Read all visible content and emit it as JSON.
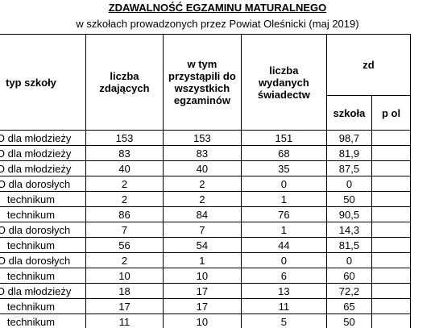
{
  "header": {
    "title": "ZDAWALNOŚĆ EGZAMINU MATURALNEGO",
    "subtitle": "w szkołach prowadzonych przez Powiat Oleśnicki (maj 2019)"
  },
  "table": {
    "columns": [
      "typ szkoły",
      "liczba zdających",
      "w tym przystąpili do wszystkich egzaminów",
      "liczba wydanych świadectw",
      "zd"
    ],
    "subcolumns": [
      "szkoła",
      "p ol"
    ],
    "rows": [
      [
        "LO dla młodzieży",
        "153",
        "153",
        "151",
        "98,7"
      ],
      [
        "LO dla młodzieży",
        "83",
        "83",
        "68",
        "81,9"
      ],
      [
        "LO dla młodzieży",
        "40",
        "40",
        "35",
        "87,5"
      ],
      [
        "LO dla dorosłych",
        "2",
        "2",
        "0",
        "0"
      ],
      [
        "technikum",
        "2",
        "2",
        "1",
        "50"
      ],
      [
        "technikum",
        "86",
        "84",
        "76",
        "90,5"
      ],
      [
        "LO dla dorosłych",
        "7",
        "7",
        "1",
        "14,3"
      ],
      [
        "technikum",
        "56",
        "54",
        "44",
        "81,5"
      ],
      [
        "LO dla dorosłych",
        "2",
        "1",
        "0",
        "0"
      ],
      [
        "technikum",
        "10",
        "10",
        "6",
        "60"
      ],
      [
        "LO dla młodzieży",
        "18",
        "17",
        "13",
        "72,2"
      ],
      [
        "technikum",
        "17",
        "17",
        "11",
        "65"
      ],
      [
        "technikum",
        "11",
        "10",
        "5",
        "50"
      ]
    ]
  }
}
